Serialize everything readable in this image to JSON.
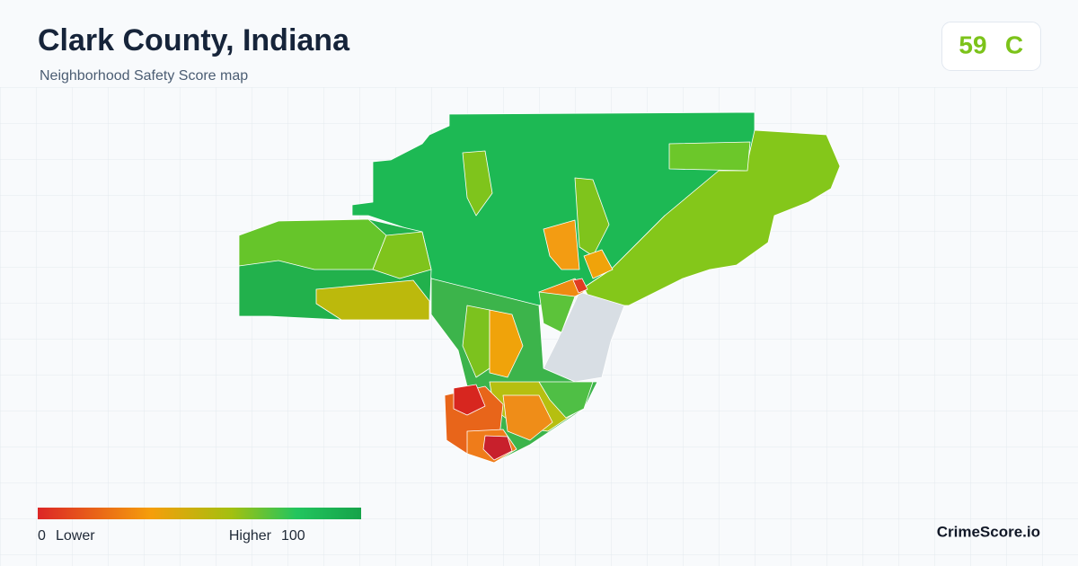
{
  "header": {
    "title": "Clark County, Indiana",
    "subtitle": "Neighborhood Safety Score map"
  },
  "score": {
    "value": 59,
    "grade": "C"
  },
  "legend": {
    "min": 0,
    "min_label": "Lower",
    "max_label": "Higher",
    "max": 100
  },
  "footer": {
    "brand": "CrimeScore.io"
  }
}
